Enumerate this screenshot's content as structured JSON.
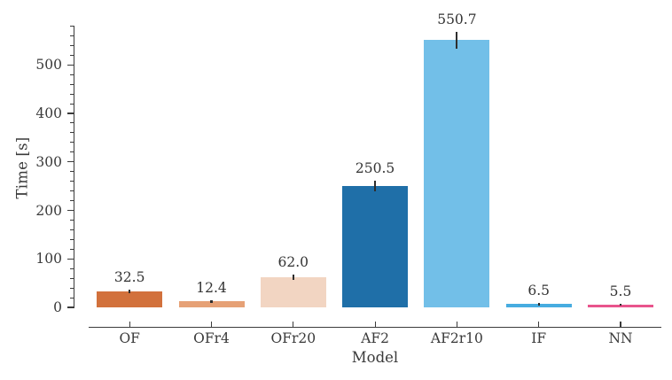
{
  "figure": {
    "background": "#ffffff",
    "axis_color": "#3b3b3b",
    "text_color": "#3a3a3a",
    "errorbar_color": "#2e2e2e"
  },
  "chart_data": {
    "type": "bar",
    "title": "",
    "xlabel": "Model",
    "ylabel": "Time [s]",
    "categories": [
      "OF",
      "OFr4",
      "OFr20",
      "AF2",
      "AF2r10",
      "IF",
      "NN"
    ],
    "values": [
      32.5,
      12.4,
      62.0,
      250.5,
      550.7,
      6.5,
      5.5
    ],
    "value_labels": [
      "32.5",
      "12.4",
      "62.0",
      "250.5",
      "550.7",
      "6.5",
      "5.5"
    ],
    "errors": [
      4,
      3,
      6,
      11,
      18,
      2,
      1.5
    ],
    "bar_colors": [
      "#d2713c",
      "#e6a176",
      "#f2d5c2",
      "#1f6fa8",
      "#72bfe8",
      "#47ace0",
      "#e8548c"
    ],
    "yticks": [
      0,
      100,
      200,
      300,
      400,
      500
    ],
    "ytick_labels": [
      "0",
      "100",
      "200",
      "300",
      "400",
      "500"
    ],
    "ylim": [
      0,
      580
    ],
    "minor_tick_step": 20,
    "grid": false,
    "legend": null
  }
}
